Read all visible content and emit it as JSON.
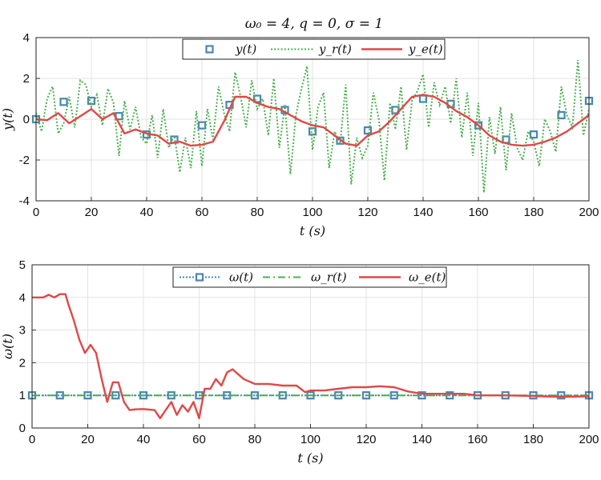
{
  "chart_data": [
    {
      "type": "line",
      "title": "ω₀ = 4,  q = 0,  σ = 1",
      "xlabel": "t (s)",
      "ylabel": "y(t)",
      "xlim": [
        0,
        200
      ],
      "ylim": [
        -4,
        4
      ],
      "xticks": [
        0,
        20,
        40,
        60,
        80,
        100,
        120,
        140,
        160,
        180,
        200
      ],
      "yticks": [
        -4,
        -2,
        0,
        2,
        4
      ],
      "grid": true,
      "legend": "top-center",
      "series": [
        {
          "name": "y(t)",
          "style": "markers",
          "color": "#4a86b0",
          "x": [
            0,
            10,
            20,
            30,
            40,
            50,
            60,
            70,
            80,
            90,
            100,
            110,
            120,
            130,
            140,
            150,
            160,
            170,
            180,
            190,
            200
          ],
          "y": [
            0.0,
            0.85,
            0.9,
            0.15,
            -0.75,
            -1.0,
            -0.3,
            0.7,
            1.0,
            0.45,
            -0.6,
            -1.05,
            -0.55,
            0.45,
            1.0,
            0.75,
            -0.3,
            -1.0,
            -0.75,
            0.2,
            0.9
          ]
        },
        {
          "name": "y_r(t)",
          "style": "dotted",
          "color": "#4caf50",
          "x": [
            0,
            2,
            4,
            6,
            8,
            10,
            12,
            14,
            16,
            18,
            20,
            22,
            24,
            26,
            28,
            30,
            32,
            34,
            36,
            38,
            40,
            42,
            44,
            46,
            48,
            50,
            52,
            54,
            56,
            58,
            60,
            62,
            64,
            66,
            68,
            70,
            72,
            74,
            76,
            78,
            80,
            82,
            84,
            86,
            88,
            90,
            92,
            94,
            96,
            98,
            100,
            102,
            104,
            106,
            108,
            110,
            112,
            114,
            116,
            118,
            120,
            122,
            124,
            126,
            128,
            130,
            132,
            134,
            136,
            138,
            140,
            142,
            144,
            146,
            148,
            150,
            152,
            154,
            156,
            158,
            160,
            162,
            164,
            166,
            168,
            170,
            172,
            174,
            176,
            178,
            180,
            182,
            184,
            186,
            188,
            190,
            192,
            194,
            196,
            198,
            200
          ],
          "y": [
            0.3,
            -0.6,
            1.0,
            1.6,
            -0.7,
            -0.2,
            1.1,
            -0.4,
            1.9,
            1.7,
            0.6,
            1.2,
            -0.3,
            1.5,
            0.8,
            -1.8,
            0.9,
            -0.5,
            0.6,
            -0.9,
            -1.2,
            0.2,
            -1.9,
            0.5,
            -1.4,
            -0.8,
            -2.6,
            -0.9,
            -2.4,
            0.4,
            -2.3,
            0.5,
            -1.0,
            1.6,
            0.3,
            -0.6,
            2.3,
            1.1,
            -0.4,
            1.9,
            0.5,
            1.0,
            -0.8,
            2.0,
            -1.4,
            0.7,
            -2.7,
            0.2,
            1.5,
            2.6,
            -1.5,
            0.6,
            1.3,
            -2.4,
            -0.6,
            -1.2,
            1.7,
            -3.2,
            -0.9,
            -1.9,
            -1.3,
            1.3,
            0.0,
            -3.0,
            0.8,
            -0.5,
            1.6,
            -1.5,
            0.9,
            1.4,
            2.2,
            -0.4,
            1.8,
            0.7,
            1.6,
            -0.2,
            2.0,
            -0.9,
            1.3,
            -1.8,
            0.8,
            -3.6,
            0.1,
            -1.7,
            0.6,
            -2.5,
            0.3,
            -1.4,
            -2.0,
            -0.6,
            -1.1,
            -2.3,
            0.0,
            -0.6,
            -1.6,
            1.6,
            0.2,
            -0.4,
            2.9,
            -0.8,
            0.5
          ]
        },
        {
          "name": "y_e(t)",
          "style": "solid",
          "color": "#e04848",
          "x": [
            0,
            4,
            8,
            12,
            16,
            20,
            24,
            28,
            32,
            36,
            40,
            44,
            48,
            52,
            56,
            60,
            64,
            68,
            72,
            76,
            80,
            84,
            88,
            92,
            96,
            100,
            104,
            108,
            112,
            116,
            120,
            124,
            128,
            132,
            136,
            140,
            144,
            148,
            152,
            156,
            160,
            164,
            168,
            172,
            176,
            180,
            184,
            188,
            192,
            196,
            200
          ],
          "y": [
            0.0,
            -0.05,
            0.3,
            -0.2,
            0.15,
            0.5,
            0.0,
            0.3,
            -0.7,
            -0.5,
            -0.7,
            -0.8,
            -1.2,
            -1.1,
            -1.3,
            -1.25,
            -1.1,
            -0.1,
            1.1,
            1.1,
            0.8,
            0.6,
            0.5,
            0.2,
            -0.1,
            -0.3,
            -0.4,
            -0.8,
            -1.2,
            -1.3,
            -0.8,
            -0.6,
            -0.1,
            0.5,
            1.1,
            1.2,
            1.1,
            0.8,
            0.4,
            0.1,
            -0.3,
            -0.8,
            -1.1,
            -1.25,
            -1.3,
            -1.25,
            -1.1,
            -0.9,
            -0.6,
            -0.2,
            0.2
          ]
        }
      ]
    },
    {
      "type": "line",
      "title": "",
      "xlabel": "t (s)",
      "ylabel": "ω(t)",
      "xlim": [
        0,
        200
      ],
      "ylim": [
        0,
        5
      ],
      "xticks": [
        0,
        20,
        40,
        60,
        80,
        100,
        120,
        140,
        160,
        180,
        200
      ],
      "yticks": [
        0,
        1,
        2,
        3,
        4,
        5
      ],
      "grid": true,
      "legend": "top-center",
      "series": [
        {
          "name": "ω(t)",
          "style": "dotted-markers",
          "color": "#4a86b0",
          "x": [
            0,
            10,
            20,
            30,
            40,
            50,
            60,
            70,
            80,
            90,
            100,
            110,
            120,
            130,
            140,
            150,
            160,
            170,
            180,
            190,
            200
          ],
          "y": [
            1,
            1,
            1,
            1,
            1,
            1,
            1,
            1,
            1,
            1,
            1,
            1,
            1,
            1,
            1,
            1,
            1,
            1,
            1,
            1,
            1
          ]
        },
        {
          "name": "ω_r(t)",
          "style": "dashdot",
          "color": "#4caf50",
          "x": [
            0,
            200
          ],
          "y": [
            1,
            1
          ]
        },
        {
          "name": "ω_e(t)",
          "style": "solid",
          "color": "#e04848",
          "x": [
            0,
            4,
            6,
            8,
            10,
            12,
            13,
            15,
            17,
            19,
            21,
            23,
            25,
            27,
            29,
            31,
            33,
            35,
            37,
            40,
            44,
            46,
            48,
            50,
            52,
            54,
            56,
            58,
            60,
            62,
            64,
            66,
            68,
            70,
            72,
            74,
            76,
            80,
            85,
            90,
            95,
            98,
            100,
            105,
            110,
            115,
            120,
            125,
            130,
            135,
            140,
            145,
            150,
            155,
            160,
            170,
            180,
            190,
            200
          ],
          "y": [
            4.0,
            4.0,
            4.08,
            4.0,
            4.1,
            4.1,
            3.8,
            3.3,
            2.7,
            2.3,
            2.55,
            2.3,
            1.5,
            0.8,
            1.4,
            1.4,
            0.8,
            0.55,
            0.57,
            0.58,
            0.55,
            0.3,
            0.55,
            0.8,
            0.4,
            0.7,
            0.5,
            0.8,
            0.3,
            1.2,
            1.2,
            1.5,
            1.3,
            1.7,
            1.8,
            1.65,
            1.5,
            1.35,
            1.35,
            1.3,
            1.3,
            1.1,
            1.15,
            1.15,
            1.2,
            1.25,
            1.25,
            1.28,
            1.25,
            1.12,
            1.05,
            1.05,
            1.05,
            1.05,
            1.0,
            1.0,
            0.98,
            0.95,
            0.97
          ]
        }
      ]
    }
  ]
}
